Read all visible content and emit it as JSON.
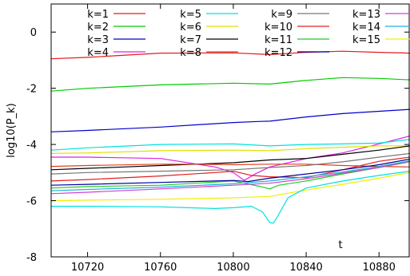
{
  "chart_data": {
    "type": "line",
    "title": "",
    "xlabel": "t",
    "ylabel": "log10(P_k)",
    "xlim": [
      10700,
      10897
    ],
    "ylim": [
      -8,
      1
    ],
    "xticks": [
      10720,
      10760,
      10800,
      10840,
      10880
    ],
    "yticks": [
      -8,
      -6,
      -4,
      -2,
      0
    ],
    "grid": false,
    "legend": "top, 4 columns",
    "series": [
      {
        "name": "k=1",
        "color": "#e41a1c",
        "x": [
          10700,
          10720,
          10760,
          10800,
          10820,
          10840,
          10860,
          10880,
          10897
        ],
        "values": [
          -0.95,
          -0.9,
          -0.75,
          -0.74,
          -0.8,
          -0.72,
          -0.68,
          -0.72,
          -0.75
        ]
      },
      {
        "name": "k=2",
        "color": "#00cc00",
        "x": [
          10700,
          10720,
          10760,
          10800,
          10820,
          10840,
          10860,
          10880,
          10897
        ],
        "values": [
          -2.1,
          -2.0,
          -1.88,
          -1.82,
          -1.85,
          -1.72,
          -1.62,
          -1.65,
          -1.7
        ]
      },
      {
        "name": "k=3",
        "color": "#0000cc",
        "x": [
          10700,
          10720,
          10760,
          10800,
          10815,
          10820,
          10840,
          10860,
          10880,
          10897
        ],
        "values": [
          -3.55,
          -3.5,
          -3.38,
          -3.22,
          -3.18,
          -3.17,
          -3.02,
          -2.9,
          -2.82,
          -2.75
        ]
      },
      {
        "name": "k=4",
        "color": "#e020e0",
        "x": [
          10700,
          10720,
          10760,
          10790,
          10800,
          10806,
          10812,
          10820,
          10840,
          10860,
          10880,
          10897
        ],
        "values": [
          -4.45,
          -4.45,
          -4.5,
          -4.8,
          -5.0,
          -5.28,
          -5.05,
          -4.8,
          -4.5,
          -4.3,
          -3.98,
          -3.7
        ]
      },
      {
        "name": "k=5",
        "color": "#00e0e0",
        "x": [
          10700,
          10720,
          10760,
          10800,
          10820,
          10840,
          10860,
          10880,
          10897
        ],
        "values": [
          -4.2,
          -4.12,
          -4.0,
          -3.98,
          -4.05,
          -4.0,
          -3.98,
          -3.95,
          -3.82
        ]
      },
      {
        "name": "k=6",
        "color": "#e0e000",
        "x": [
          10700,
          10720,
          10760,
          10800,
          10820,
          10840,
          10860,
          10880,
          10897
        ],
        "values": [
          -4.32,
          -4.3,
          -4.22,
          -4.2,
          -4.22,
          -4.15,
          -4.1,
          -4.05,
          -4.05
        ]
      },
      {
        "name": "k=7",
        "color": "#000000",
        "x": [
          10700,
          10720,
          10740,
          10760,
          10780,
          10800,
          10820,
          10840,
          10860,
          10880,
          10897
        ],
        "values": [
          -4.9,
          -4.85,
          -4.8,
          -4.75,
          -4.7,
          -4.65,
          -4.55,
          -4.5,
          -4.35,
          -4.2,
          -4.05
        ]
      },
      {
        "name": "k=8",
        "color": "#e04020",
        "x": [
          10700,
          10720,
          10760,
          10780,
          10800,
          10820,
          10840,
          10860,
          10880,
          10897
        ],
        "values": [
          -4.78,
          -4.75,
          -4.7,
          -4.7,
          -4.72,
          -4.7,
          -4.7,
          -4.75,
          -4.78,
          -4.8
        ]
      },
      {
        "name": "k=9",
        "color": "#777777",
        "x": [
          10700,
          10720,
          10760,
          10800,
          10820,
          10840,
          10860,
          10880,
          10897
        ],
        "values": [
          -5.05,
          -5.0,
          -4.95,
          -4.9,
          -4.82,
          -4.75,
          -4.62,
          -4.45,
          -4.32
        ]
      },
      {
        "name": "k=10",
        "color": "#e02020",
        "x": [
          10700,
          10720,
          10760,
          10790,
          10800,
          10810,
          10820,
          10840,
          10860,
          10880,
          10897
        ],
        "values": [
          -5.3,
          -5.25,
          -5.12,
          -5.0,
          -4.95,
          -5.1,
          -5.15,
          -5.18,
          -4.9,
          -4.6,
          -4.45
        ]
      },
      {
        "name": "k=11",
        "color": "#20cc20",
        "x": [
          10700,
          10720,
          10760,
          10800,
          10815,
          10820,
          10825,
          10840,
          10860,
          10880,
          10897
        ],
        "values": [
          -5.55,
          -5.5,
          -5.45,
          -5.3,
          -5.5,
          -5.58,
          -5.45,
          -5.3,
          -5.05,
          -4.82,
          -4.62
        ]
      },
      {
        "name": "k=12",
        "color": "#0000a0",
        "x": [
          10700,
          10720,
          10760,
          10800,
          10808,
          10815,
          10820,
          10840,
          10860,
          10880,
          10897
        ],
        "values": [
          -5.45,
          -5.42,
          -5.35,
          -5.28,
          -5.32,
          -5.25,
          -5.2,
          -5.05,
          -4.9,
          -4.72,
          -4.52
        ]
      },
      {
        "name": "k=13",
        "color": "#d040d0",
        "x": [
          10700,
          10720,
          10760,
          10800,
          10820,
          10840,
          10860,
          10880,
          10897
        ],
        "values": [
          -5.75,
          -5.7,
          -5.58,
          -5.45,
          -5.38,
          -5.22,
          -5.02,
          -4.82,
          -4.6
        ]
      },
      {
        "name": "k=14",
        "color": "#20b0e0",
        "x": [
          10700,
          10720,
          10760,
          10800,
          10820,
          10840,
          10860,
          10880,
          10897
        ],
        "values": [
          -5.65,
          -5.6,
          -5.52,
          -5.4,
          -5.3,
          -5.15,
          -4.98,
          -4.78,
          -4.58
        ]
      },
      {
        "name": "k=15",
        "color": "#f0f000",
        "x": [
          10700,
          10720,
          10760,
          10800,
          10820,
          10840,
          10860,
          10880,
          10897
        ],
        "values": [
          -6.0,
          -5.98,
          -5.95,
          -5.9,
          -5.85,
          -5.62,
          -5.42,
          -5.2,
          -5.0
        ]
      },
      {
        "name": "",
        "color": "#00e0e0",
        "x": [
          10700,
          10720,
          10760,
          10790,
          10800,
          10810,
          10816,
          10820,
          10822,
          10824,
          10830,
          10840,
          10860,
          10880,
          10897
        ],
        "values": [
          -6.2,
          -6.2,
          -6.22,
          -6.28,
          -6.25,
          -6.2,
          -6.4,
          -6.78,
          -6.8,
          -6.6,
          -5.9,
          -5.55,
          -5.3,
          -5.1,
          -4.95
        ]
      }
    ]
  }
}
